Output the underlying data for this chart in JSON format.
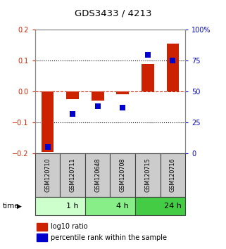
{
  "title": "GDS3433 / 4213",
  "samples": [
    "GSM120710",
    "GSM120711",
    "GSM120648",
    "GSM120708",
    "GSM120715",
    "GSM120716"
  ],
  "log10_ratio": [
    -0.195,
    -0.025,
    -0.03,
    -0.008,
    0.09,
    0.155
  ],
  "percentile_rank": [
    5,
    32,
    38,
    37,
    80,
    75
  ],
  "ylim_left": [
    -0.2,
    0.2
  ],
  "ylim_right": [
    0,
    100
  ],
  "yticks_left": [
    -0.2,
    -0.1,
    0.0,
    0.1,
    0.2
  ],
  "yticks_right": [
    0,
    25,
    50,
    75,
    100
  ],
  "ytick_labels_right": [
    "0",
    "25",
    "50",
    "75",
    "100%"
  ],
  "bar_color": "#cc2200",
  "dot_color": "#0000cc",
  "dotted_line_y": [
    0.1,
    -0.1
  ],
  "dashed_line_y": 0.0,
  "time_groups": [
    {
      "label": "1 h",
      "start": 0,
      "end": 2,
      "color": "#ccffcc"
    },
    {
      "label": "4 h",
      "start": 2,
      "end": 4,
      "color": "#88ee88"
    },
    {
      "label": "24 h",
      "start": 4,
      "end": 6,
      "color": "#44cc44"
    }
  ],
  "legend_bar_label": "log10 ratio",
  "legend_dot_label": "percentile rank within the sample",
  "time_label": "time",
  "sample_box_color": "#cccccc",
  "sample_box_edge": "#444444",
  "bg_color": "#ffffff"
}
